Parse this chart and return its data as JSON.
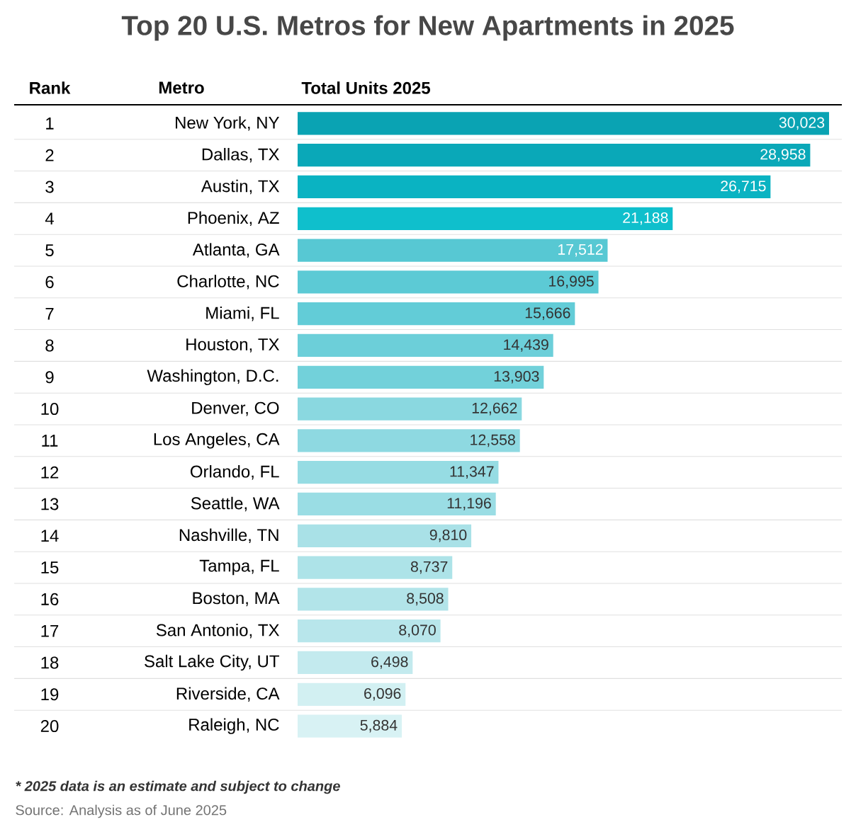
{
  "chart_data": {
    "type": "bar",
    "orientation": "horizontal",
    "title": "Top 20 U.S. Metros for New Apartments in 2025",
    "categories": [
      "New York, NY",
      "Dallas, TX",
      "Austin, TX",
      "Phoenix, AZ",
      "Atlanta, GA",
      "Charlotte, NC",
      "Miami, FL",
      "Houston, TX",
      "Washington, D.C.",
      "Denver, CO",
      "Los Angeles, CA",
      "Orlando, FL",
      "Seattle, WA",
      "Nashville, TN",
      "Tampa, FL",
      "Boston, MA",
      "San Antonio, TX",
      "Salt Lake City, UT",
      "Riverside, CA",
      "Raleigh, NC"
    ],
    "values": [
      30023,
      28958,
      26715,
      21188,
      17512,
      16995,
      15666,
      14439,
      13903,
      12662,
      12558,
      11347,
      11196,
      9810,
      8737,
      8508,
      8070,
      6498,
      6096,
      5884
    ],
    "value_labels": [
      "30,023",
      "28,958",
      "26,715",
      "21,188",
      "17,512",
      "16,995",
      "15,666",
      "14,439",
      "13,903",
      "12,662",
      "12,558",
      "11,347",
      "11,196",
      "9,810",
      "8,737",
      "8,508",
      "8,070",
      "6,498",
      "6,096",
      "5,884"
    ],
    "colors": [
      "#0aa3b3",
      "#0aa8b8",
      "#0ab3c2",
      "#0fbfcc",
      "#57c8d3",
      "#5ccad5",
      "#62ccd7",
      "#6ccfd9",
      "#72d1da",
      "#8ad8e0",
      "#8ed9e1",
      "#96dce3",
      "#9adde4",
      "#a9e1e7",
      "#ade3e8",
      "#b2e4e9",
      "#b8e6eb",
      "#c3eaee",
      "#d2f0f2",
      "#d8f2f4"
    ],
    "annotations": [
      "Rank",
      "Metro",
      "Total Units 2025",
      "1",
      "2",
      "3",
      "4",
      "5",
      "6",
      "7",
      "8",
      "9",
      "10",
      "11",
      "12",
      "13",
      "14",
      "15",
      "16",
      "17",
      "18",
      "19",
      "20",
      "* 2025 data is an estimate and subject to change",
      "Source: Analysis as of June 2025"
    ]
  }
}
